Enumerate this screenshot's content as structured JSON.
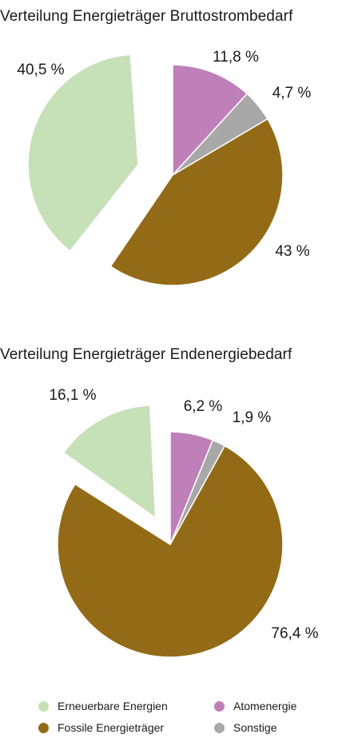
{
  "chart_data": [
    {
      "type": "pie",
      "title": "Verteilung Energieträger Bruttostrombedarf",
      "slices": [
        {
          "name": "Atomenergie",
          "value": 11.8,
          "label": "11,8 %",
          "color": "#bf80b9",
          "exploded": false
        },
        {
          "name": "Sonstige",
          "value": 4.7,
          "label": "4,7 %",
          "color": "#a8a8a8",
          "exploded": false
        },
        {
          "name": "Fossile Energieträger",
          "value": 43,
          "label": "43 %",
          "color": "#936b17",
          "exploded": false
        },
        {
          "name": "Erneuerbare Energien",
          "value": 40.5,
          "label": "40,5 %",
          "color": "#c6e0b8",
          "exploded": true
        }
      ]
    },
    {
      "type": "pie",
      "title": "Verteilung Energieträger Endenergiebedarf",
      "slices": [
        {
          "name": "Atomenergie",
          "value": 6.2,
          "label": "6,2 %",
          "color": "#bf80b9",
          "exploded": false
        },
        {
          "name": "Sonstige",
          "value": 1.9,
          "label": "1,9 %",
          "color": "#a8a8a8",
          "exploded": false
        },
        {
          "name": "Fossile Energieträger",
          "value": 76.4,
          "label": "76,4 %",
          "color": "#936b17",
          "exploded": false
        },
        {
          "name": "Erneuerbare Energien",
          "value": 16.1,
          "label": "16,1 %",
          "color": "#c6e0b8",
          "exploded": true
        }
      ]
    }
  ],
  "legend": {
    "items": [
      {
        "label": "Erneuerbare Energien",
        "color": "#c6e0b8"
      },
      {
        "label": "Atomenergie",
        "color": "#bf80b9"
      },
      {
        "label": "Fossile Energieträger",
        "color": "#936b17"
      },
      {
        "label": "Sonstige",
        "color": "#a8a8a8"
      }
    ]
  }
}
